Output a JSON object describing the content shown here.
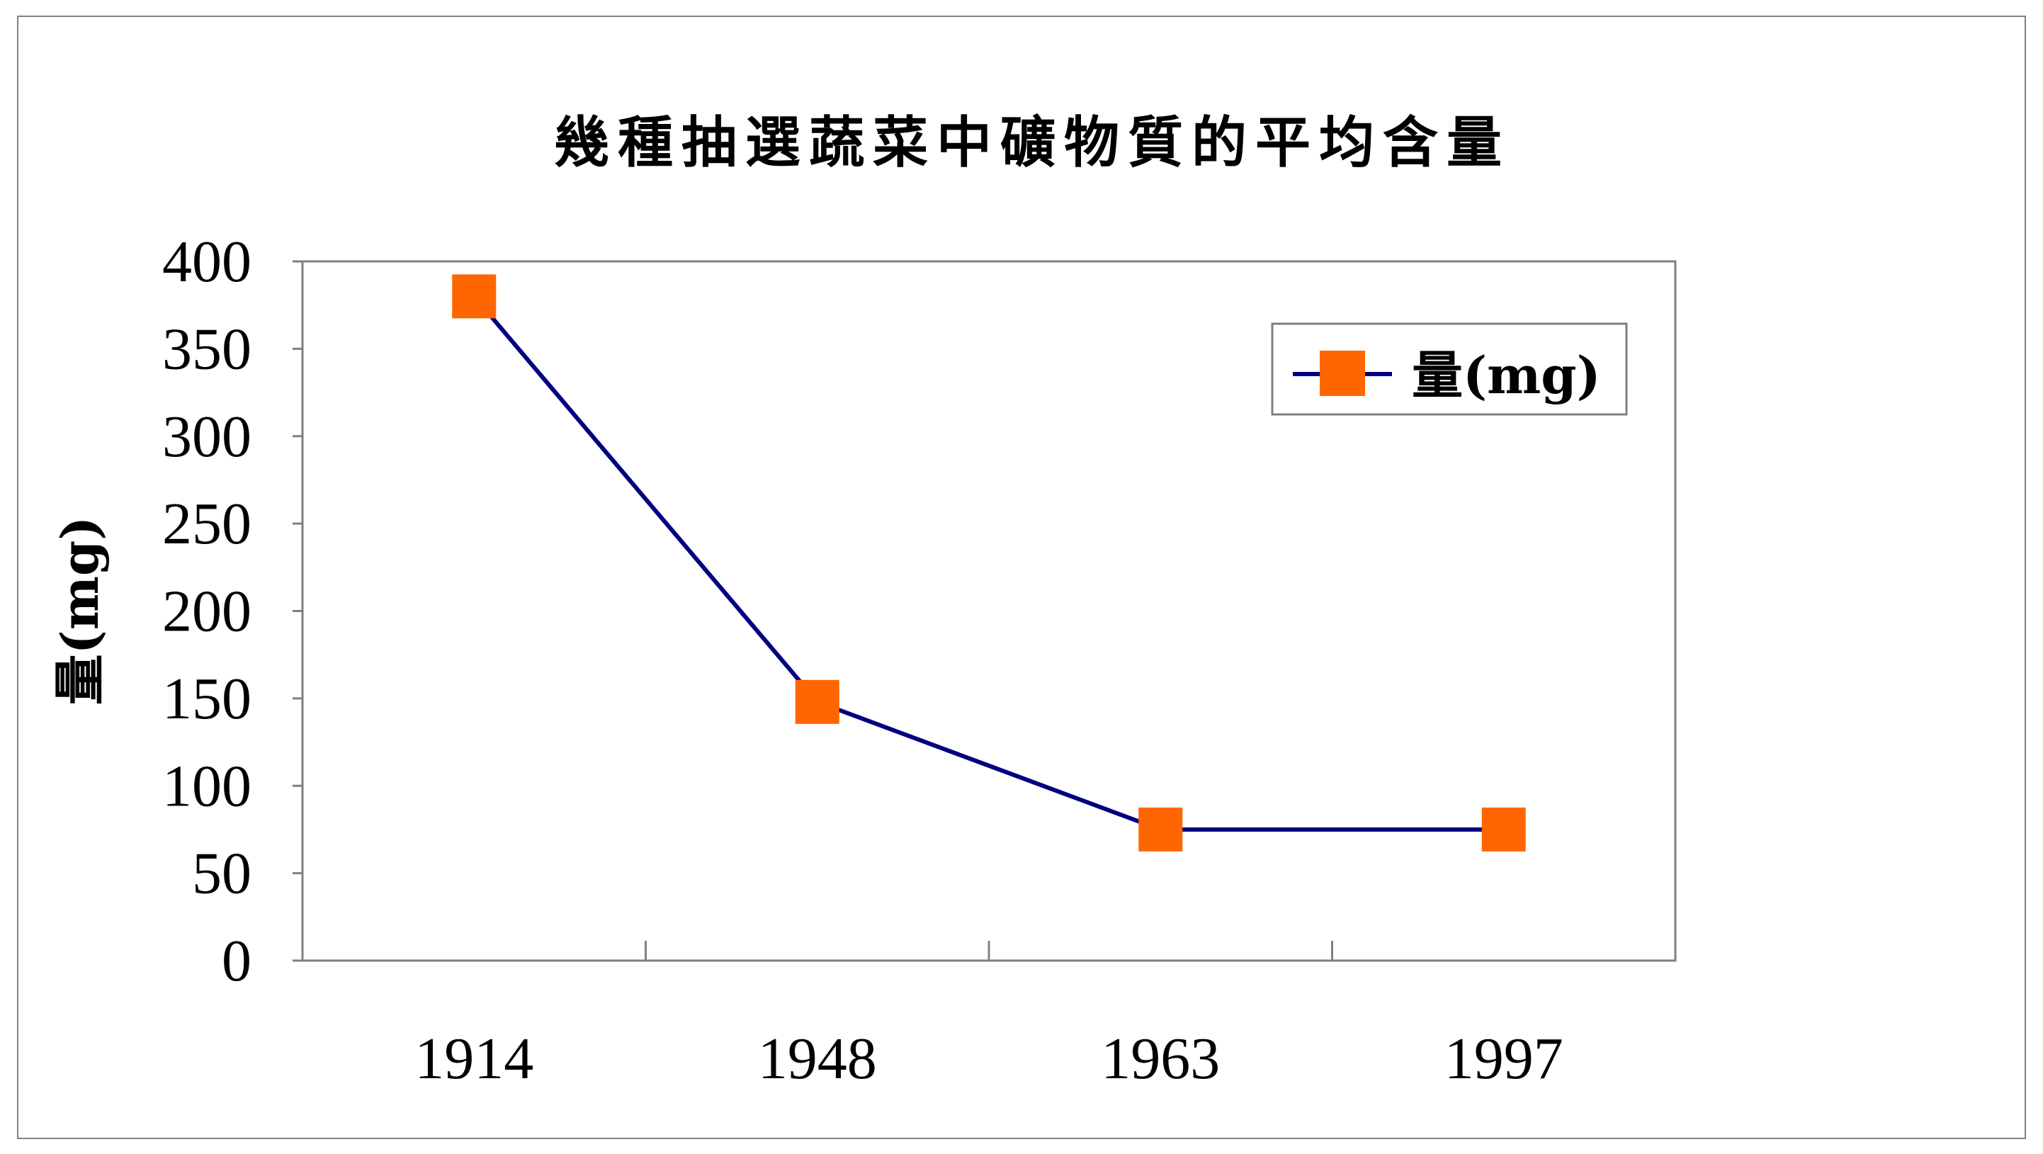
{
  "chart_data": {
    "type": "line",
    "title": "幾種抽選蔬菜中礦物質的平均含量",
    "xlabel": "",
    "ylabel": "量(mg)",
    "categories": [
      "1914",
      "1948",
      "1963",
      "1997"
    ],
    "series": [
      {
        "name": "量(mg)",
        "values": [
          380,
          148,
          75,
          75
        ],
        "line_color": "#000080",
        "marker_color": "#FF6600",
        "marker": "square"
      }
    ],
    "ylim": [
      0,
      400
    ],
    "yticks": [
      0,
      50,
      100,
      150,
      200,
      250,
      300,
      350,
      400
    ],
    "grid": false,
    "legend_position": "top-right"
  }
}
